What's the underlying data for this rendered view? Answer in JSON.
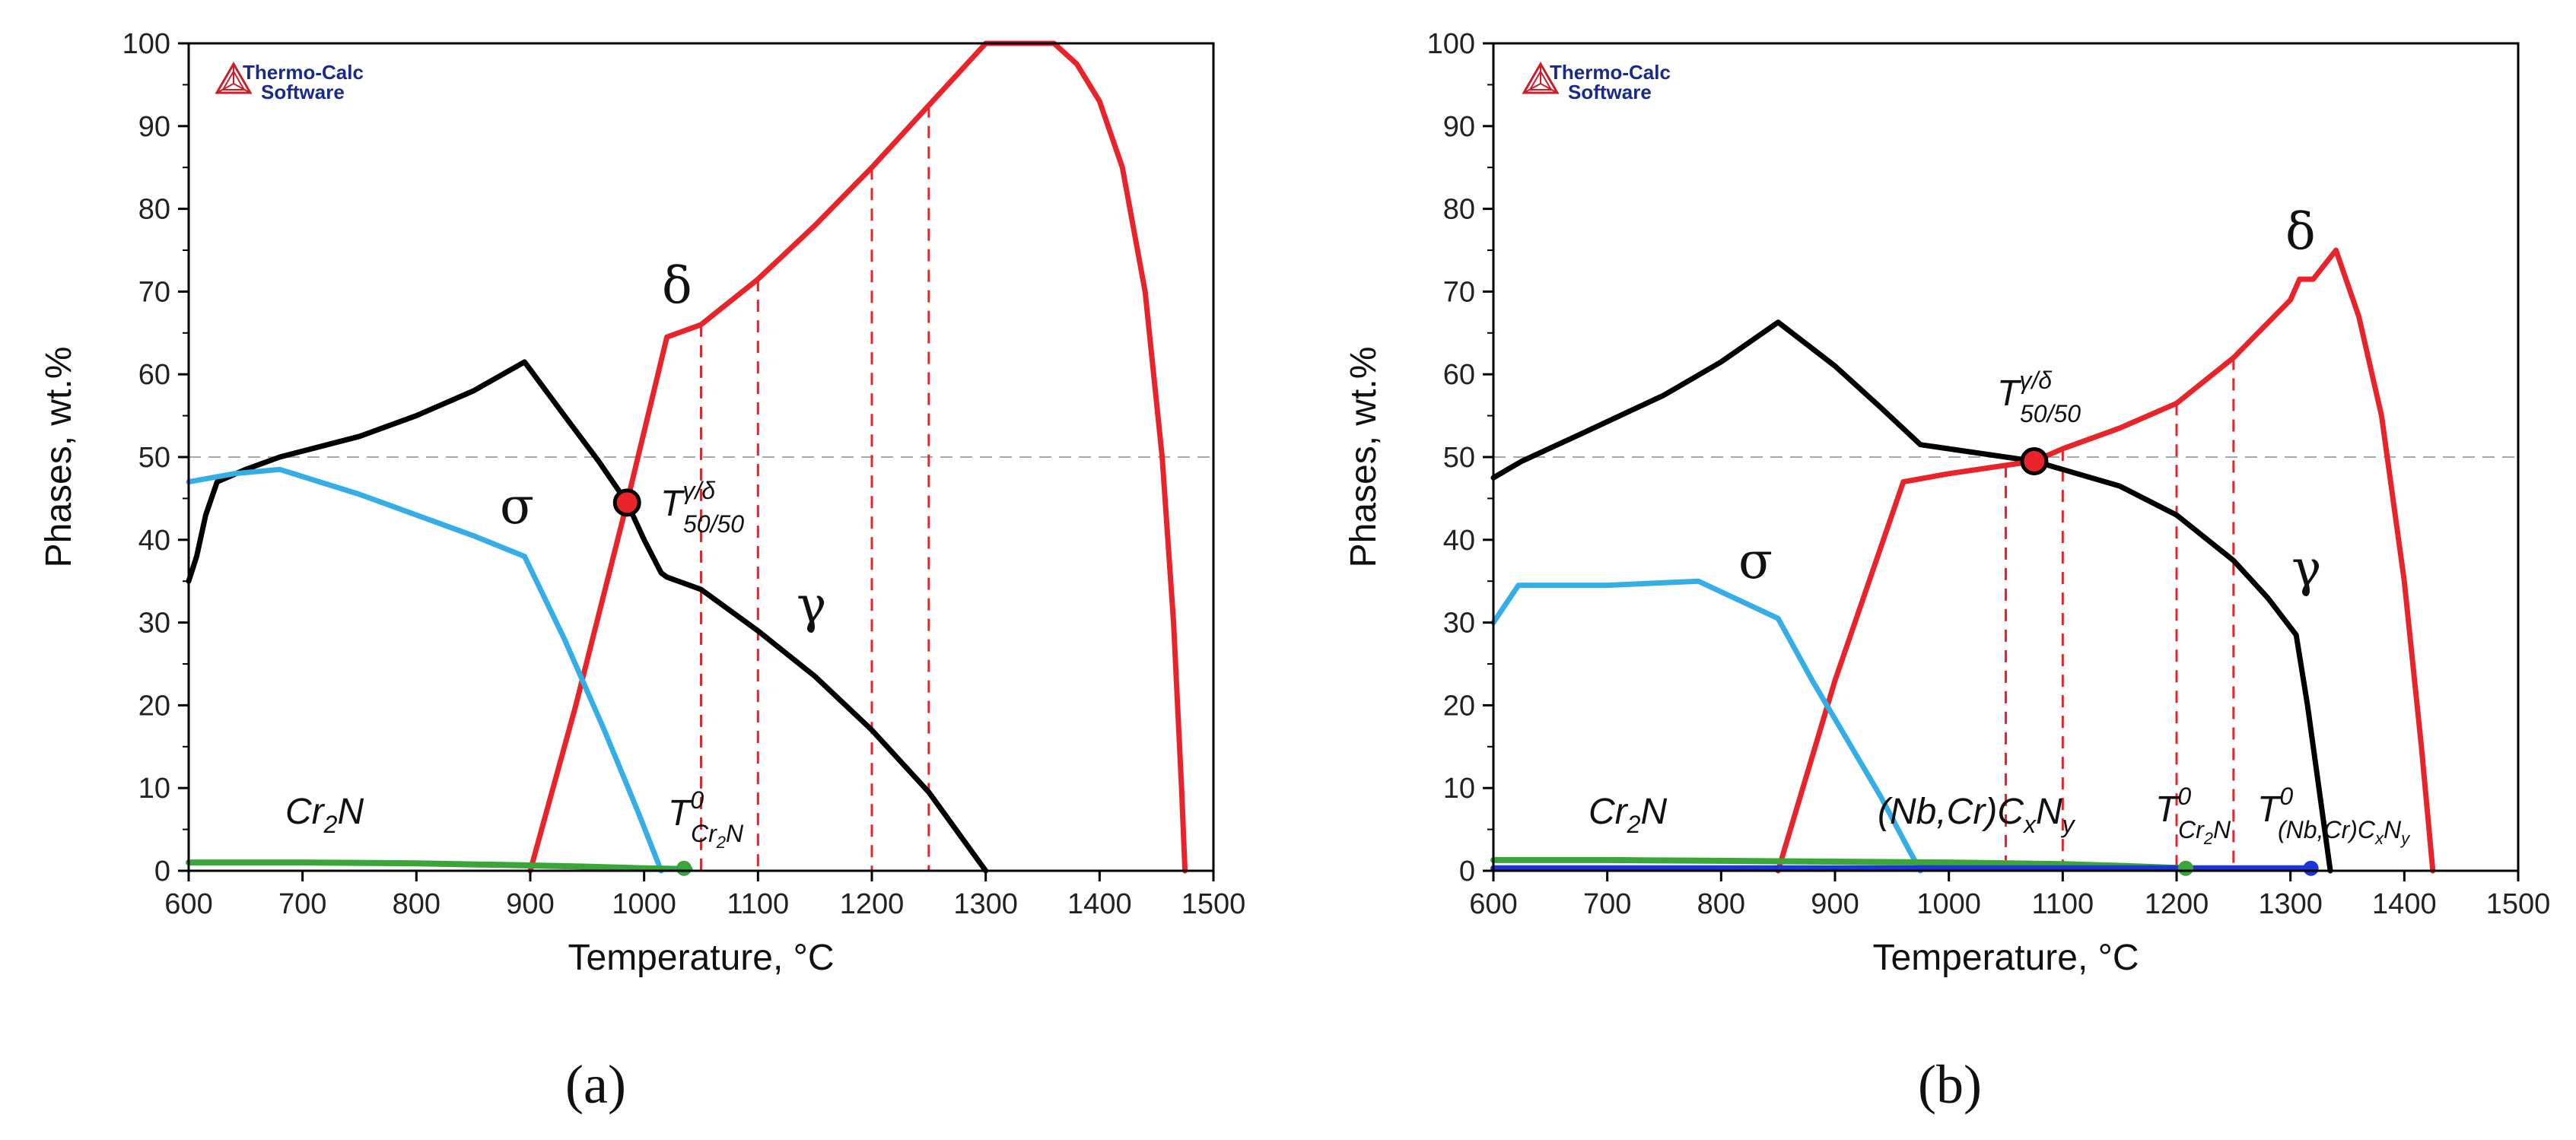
{
  "figure": {
    "logo": {
      "line1": "Thermo-Calc",
      "line2": "Software"
    }
  },
  "chart_data": [
    {
      "panel": "(a)",
      "type": "line",
      "xlabel": "Temperature, °C",
      "ylabel": "Phases, wt.%",
      "xlim": [
        600,
        1500
      ],
      "ylim": [
        0,
        100
      ],
      "xticks": [
        600,
        700,
        800,
        900,
        1000,
        1100,
        1200,
        1300,
        1400,
        1500
      ],
      "yticks": [
        0,
        10,
        20,
        30,
        40,
        50,
        60,
        70,
        80,
        90,
        100
      ],
      "reference_line": {
        "y": 50,
        "style": "dashed-gray"
      },
      "verticals": [
        1050,
        1100,
        1200,
        1250
      ],
      "series": [
        {
          "name": "γ",
          "color": "#000000",
          "points": [
            [
              600,
              35
            ],
            [
              607,
              38
            ],
            [
              615,
              43
            ],
            [
              625,
              47
            ],
            [
              650,
              48.5
            ],
            [
              680,
              50
            ],
            [
              750,
              52.5
            ],
            [
              800,
              55
            ],
            [
              850,
              58
            ],
            [
              895,
              61.5
            ],
            [
              930,
              55
            ],
            [
              960,
              49.5
            ],
            [
              985,
              44.5
            ],
            [
              1000,
              40
            ],
            [
              1015,
              36
            ],
            [
              1020,
              35.5
            ],
            [
              1050,
              34
            ],
            [
              1100,
              29
            ],
            [
              1150,
              23.5
            ],
            [
              1200,
              17
            ],
            [
              1250,
              9.5
            ],
            [
              1300,
              0
            ]
          ]
        },
        {
          "name": "δ",
          "color": "#e8242a",
          "points": [
            [
              900,
              0
            ],
            [
              940,
              20
            ],
            [
              985,
              44.5
            ],
            [
              1020,
              64.5
            ],
            [
              1050,
              66
            ],
            [
              1100,
              71.5
            ],
            [
              1150,
              78
            ],
            [
              1200,
              85
            ],
            [
              1250,
              92.5
            ],
            [
              1300,
              100
            ],
            [
              1360,
              100
            ],
            [
              1380,
              97.5
            ],
            [
              1400,
              93
            ],
            [
              1420,
              85
            ],
            [
              1440,
              70
            ],
            [
              1455,
              50
            ],
            [
              1465,
              30
            ],
            [
              1472,
              10
            ],
            [
              1475,
              0
            ]
          ]
        },
        {
          "name": "σ",
          "color": "#35ade6",
          "points": [
            [
              600,
              47
            ],
            [
              640,
              48
            ],
            [
              680,
              48.5
            ],
            [
              750,
              45.5
            ],
            [
              800,
              43
            ],
            [
              850,
              40.5
            ],
            [
              895,
              38
            ],
            [
              930,
              28
            ],
            [
              965,
              17
            ],
            [
              995,
              7
            ],
            [
              1015,
              0
            ]
          ]
        },
        {
          "name": "Cr2N",
          "color": "#3aa63a",
          "points": [
            [
              600,
              1
            ],
            [
              700,
              1
            ],
            [
              800,
              0.9
            ],
            [
              880,
              0.7
            ],
            [
              950,
              0.5
            ],
            [
              1000,
              0.3
            ],
            [
              1040,
              0.2
            ]
          ]
        }
      ],
      "markers": [
        {
          "name": "T50/50",
          "x": 985,
          "y": 44.5,
          "fill": "#e8242a"
        },
        {
          "name": "T0 Cr2N",
          "x": 1035,
          "y": 0.3,
          "fill": "#3aa63a"
        }
      ],
      "annotations": {
        "delta": "δ",
        "sigma": "σ",
        "gamma": "γ",
        "cr2n_main": "Cr",
        "cr2n_sub": "2",
        "cr2n_end": "N",
        "t5050_main": "T",
        "t5050_sup": "γ/δ",
        "t5050_sub": "50/50",
        "t0_main": "T",
        "t0_sup": "0",
        "t0_sub_a": "Cr",
        "t0_sub_b": "2",
        "t0_sub_c": "N"
      }
    },
    {
      "panel": "(b)",
      "type": "line",
      "xlabel": "Temperature, °C",
      "ylabel": "Phases, wt.%",
      "xlim": [
        600,
        1500
      ],
      "ylim": [
        0,
        100
      ],
      "xticks": [
        600,
        700,
        800,
        900,
        1000,
        1100,
        1200,
        1300,
        1400,
        1500
      ],
      "yticks": [
        0,
        10,
        20,
        30,
        40,
        50,
        60,
        70,
        80,
        90,
        100
      ],
      "reference_line": {
        "y": 50,
        "style": "dashed-gray"
      },
      "verticals": [
        1050,
        1100,
        1200,
        1250
      ],
      "series": [
        {
          "name": "γ",
          "color": "#000000",
          "points": [
            [
              600,
              47.5
            ],
            [
              625,
              49.5
            ],
            [
              680,
              53
            ],
            [
              750,
              57.5
            ],
            [
              800,
              61.5
            ],
            [
              850,
              66.3
            ],
            [
              900,
              61
            ],
            [
              940,
              56
            ],
            [
              975,
              51.5
            ],
            [
              1000,
              51
            ],
            [
              1050,
              50
            ],
            [
              1075,
              49.5
            ],
            [
              1100,
              48.5
            ],
            [
              1150,
              46.5
            ],
            [
              1200,
              43
            ],
            [
              1250,
              37.5
            ],
            [
              1280,
              33
            ],
            [
              1305,
              28.5
            ],
            [
              1315,
              20
            ],
            [
              1325,
              10
            ],
            [
              1330,
              5
            ],
            [
              1335,
              0
            ]
          ]
        },
        {
          "name": "δ",
          "color": "#e8242a",
          "points": [
            [
              850,
              0
            ],
            [
              900,
              23
            ],
            [
              960,
              47
            ],
            [
              1000,
              48
            ],
            [
              1050,
              49
            ],
            [
              1075,
              49.5
            ],
            [
              1100,
              51
            ],
            [
              1150,
              53.5
            ],
            [
              1200,
              56.5
            ],
            [
              1250,
              62
            ],
            [
              1300,
              69
            ],
            [
              1308,
              71.5
            ],
            [
              1320,
              71.5
            ],
            [
              1340,
              75
            ],
            [
              1360,
              67
            ],
            [
              1380,
              55
            ],
            [
              1400,
              35
            ],
            [
              1415,
              15
            ],
            [
              1425,
              0
            ]
          ]
        },
        {
          "name": "σ",
          "color": "#35ade6",
          "points": [
            [
              600,
              30
            ],
            [
              622,
              34.5
            ],
            [
              700,
              34.5
            ],
            [
              780,
              35
            ],
            [
              850,
              30.5
            ],
            [
              880,
              23
            ],
            [
              910,
              16
            ],
            [
              940,
              9
            ],
            [
              965,
              2.5
            ],
            [
              975,
              0
            ]
          ]
        },
        {
          "name": "Cr2N",
          "color": "#3aa63a",
          "points": [
            [
              600,
              1.3
            ],
            [
              700,
              1.3
            ],
            [
              800,
              1.2
            ],
            [
              900,
              1.1
            ],
            [
              1000,
              1
            ],
            [
              1100,
              0.8
            ],
            [
              1150,
              0.6
            ],
            [
              1210,
              0.3
            ]
          ]
        },
        {
          "name": "(Nb,Cr)CxNy",
          "color": "#1a35d8",
          "points": [
            [
              600,
              0.3
            ],
            [
              800,
              0.3
            ],
            [
              1000,
              0.3
            ],
            [
              1100,
              0.3
            ],
            [
              1200,
              0.3
            ],
            [
              1300,
              0.3
            ],
            [
              1320,
              0.3
            ]
          ]
        }
      ],
      "markers": [
        {
          "name": "T50/50",
          "x": 1075,
          "y": 49.5,
          "fill": "#e8242a"
        },
        {
          "name": "T0 Cr2N",
          "x": 1208,
          "y": 0.3,
          "fill": "#3aa63a"
        },
        {
          "name": "T0 (Nb,Cr)CxNy",
          "x": 1318,
          "y": 0.3,
          "fill": "#1a35d8"
        }
      ],
      "annotations": {
        "delta": "δ",
        "sigma": "σ",
        "gamma": "γ",
        "cr2n_main": "Cr",
        "cr2n_sub": "2",
        "cr2n_end": "N",
        "nb_main": "(Nb,Cr)C",
        "nb_sub_x": "x",
        "nb_mid": "N",
        "nb_sub_y": "y",
        "t5050_main": "T",
        "t5050_sup": "γ/δ",
        "t5050_sub": "50/50",
        "t0_main": "T",
        "t0_sup": "0",
        "t0_sub_a": "Cr",
        "t0_sub_b": "2",
        "t0_sub_c": "N",
        "t0nb_main": "T",
        "t0nb_sup": "0",
        "t0nb_sub": "(Nb,Cr)C",
        "t0nb_sub_x": "x",
        "t0nb_sub_mid": "N",
        "t0nb_sub_y": "y"
      }
    }
  ]
}
